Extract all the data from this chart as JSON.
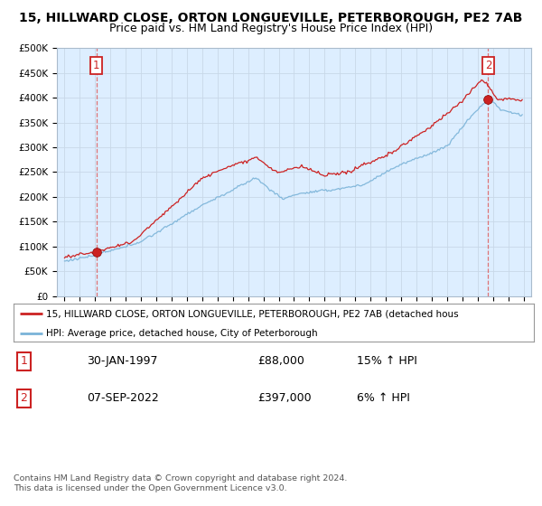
{
  "title": "15, HILLWARD CLOSE, ORTON LONGUEVILLE, PETERBOROUGH, PE2 7AB",
  "subtitle": "Price paid vs. HM Land Registry's House Price Index (HPI)",
  "ylabel_ticks": [
    "£0",
    "£50K",
    "£100K",
    "£150K",
    "£200K",
    "£250K",
    "£300K",
    "£350K",
    "£400K",
    "£450K",
    "£500K"
  ],
  "ytick_values": [
    0,
    50000,
    100000,
    150000,
    200000,
    250000,
    300000,
    350000,
    400000,
    450000,
    500000
  ],
  "xlim_start": 1994.5,
  "xlim_end": 2025.5,
  "ylim_min": 0,
  "ylim_max": 500000,
  "point1_x": 1997.08,
  "point1_y": 88000,
  "point1_label": "1",
  "point2_x": 2022.69,
  "point2_y": 397000,
  "point2_label": "2",
  "hpi_color": "#7ab3d8",
  "price_color": "#cc2222",
  "dashed_color": "#dd6666",
  "grid_color": "#c8d8e8",
  "background_color": "#ffffff",
  "plot_bg_color": "#ddeeff",
  "legend_line1": "15, HILLWARD CLOSE, ORTON LONGUEVILLE, PETERBOROUGH, PE2 7AB (detached hous",
  "legend_line2": "HPI: Average price, detached house, City of Peterborough",
  "table_row1": [
    "1",
    "30-JAN-1997",
    "£88,000",
    "15% ↑ HPI"
  ],
  "table_row2": [
    "2",
    "07-SEP-2022",
    "£397,000",
    "6% ↑ HPI"
  ],
  "footnote": "Contains HM Land Registry data © Crown copyright and database right 2024.\nThis data is licensed under the Open Government Licence v3.0.",
  "title_fontsize": 10,
  "subtitle_fontsize": 9,
  "axis_fontsize": 7.5,
  "xticks": [
    1995,
    1996,
    1997,
    1998,
    1999,
    2000,
    2001,
    2002,
    2003,
    2004,
    2005,
    2006,
    2007,
    2008,
    2009,
    2010,
    2011,
    2012,
    2013,
    2014,
    2015,
    2016,
    2017,
    2018,
    2019,
    2020,
    2021,
    2022,
    2023,
    2024,
    2025
  ]
}
